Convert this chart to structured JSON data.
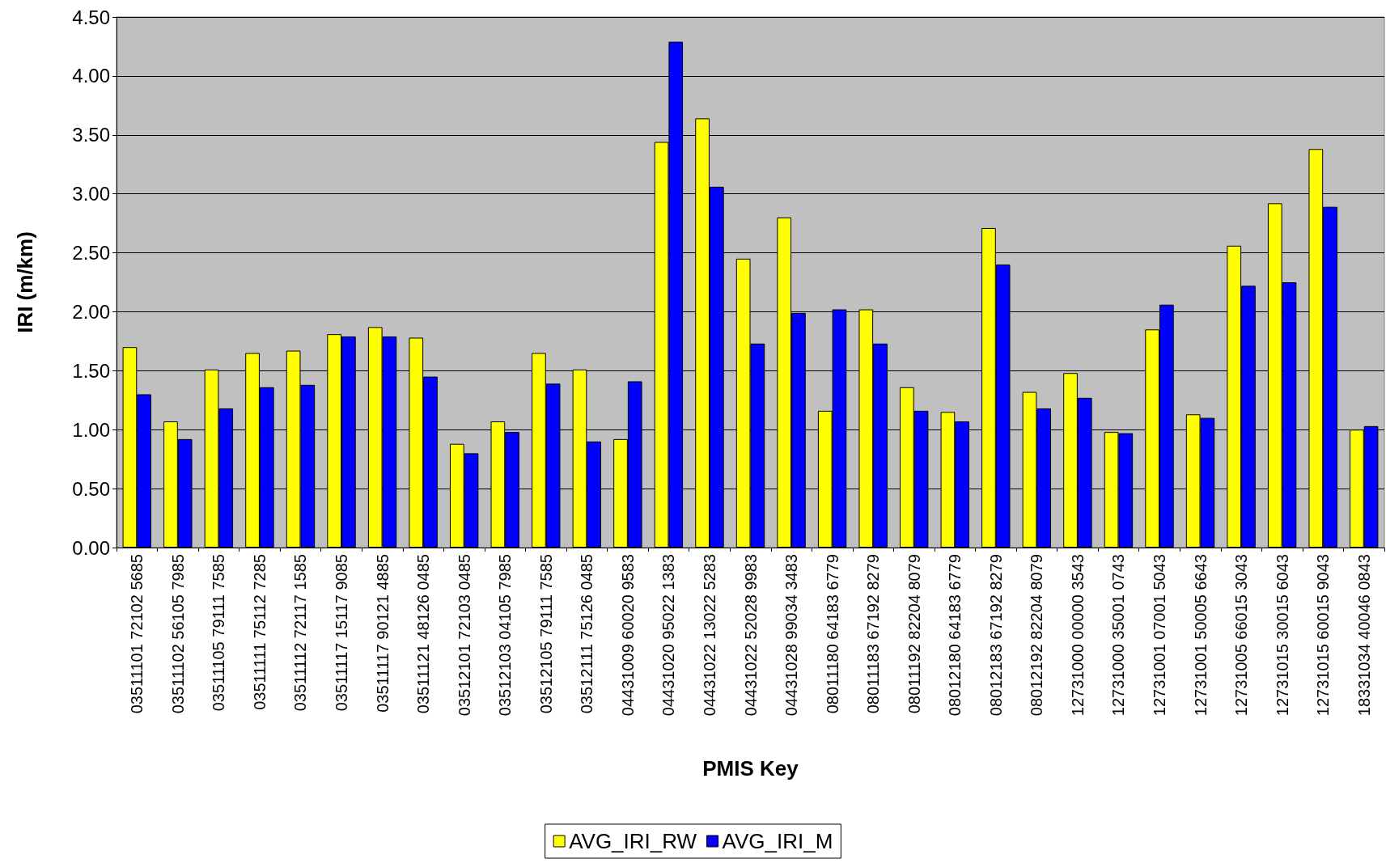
{
  "chart_data": {
    "type": "bar",
    "xlabel": "PMIS Key",
    "ylabel": "IRI (m/km)",
    "categories": [
      "03511101 72102 5685",
      "03511102 56105 7985",
      "03511105 79111 7585",
      "03511111 75112 7285",
      "03511112 72117 1585",
      "03511117 15117 9085",
      "03511117 90121 4885",
      "03511121 48126 0485",
      "03512101 72103 0485",
      "03512103 04105 7985",
      "03512105 79111 7585",
      "03512111 75126 0485",
      "04431009 60020 9583",
      "04431020 95022 1383",
      "04431022 13022 5283",
      "04431022 52028 9983",
      "04431028 99034 3483",
      "08011180 64183 6779",
      "08011183 67192 8279",
      "08011192 82204 8079",
      "08012180 64183 6779",
      "08012183 67192 8279",
      "08012192 82204 8079",
      "12731000 00000 3543",
      "12731000 35001 0743",
      "12731001 07001 5043",
      "12731001 50005 6643",
      "12731005 66015 3043",
      "12731015 30015 6043",
      "12731015 60015 9043",
      "18331034 40046 0843"
    ],
    "series": [
      {
        "name": "AVG_IRI_RW",
        "color": "#ffff00",
        "values": [
          1.7,
          1.07,
          1.51,
          1.65,
          1.67,
          1.81,
          1.87,
          1.78,
          0.88,
          1.07,
          1.65,
          1.51,
          0.92,
          3.44,
          3.64,
          2.45,
          2.8,
          1.16,
          2.02,
          1.36,
          1.15,
          2.71,
          1.32,
          1.48,
          0.98,
          1.85,
          1.13,
          2.56,
          2.92,
          3.38,
          1.0
        ]
      },
      {
        "name": "AVG_IRI_M",
        "color": "#0000ff",
        "values": [
          1.3,
          0.92,
          1.18,
          1.36,
          1.38,
          1.79,
          1.79,
          1.45,
          0.8,
          0.98,
          1.39,
          0.9,
          1.41,
          4.29,
          3.06,
          1.73,
          1.99,
          2.02,
          1.73,
          1.16,
          1.07,
          2.4,
          1.18,
          1.27,
          0.97,
          2.06,
          1.1,
          2.22,
          2.25,
          2.89,
          1.03
        ]
      }
    ],
    "ylim": [
      0,
      4.5
    ],
    "yticks": [
      {
        "value": 0,
        "label": "0.00"
      },
      {
        "value": 0.5,
        "label": "0.50"
      },
      {
        "value": 1,
        "label": "1.00"
      },
      {
        "value": 1.5,
        "label": "1.50"
      },
      {
        "value": 2,
        "label": "2.00"
      },
      {
        "value": 2.5,
        "label": "2.50"
      },
      {
        "value": 3,
        "label": "3.00"
      },
      {
        "value": 3.5,
        "label": "3.50"
      },
      {
        "value": 4,
        "label": "4.00"
      },
      {
        "value": 4.5,
        "label": "4.50"
      }
    ],
    "grid": "y",
    "legend": "bottom"
  }
}
